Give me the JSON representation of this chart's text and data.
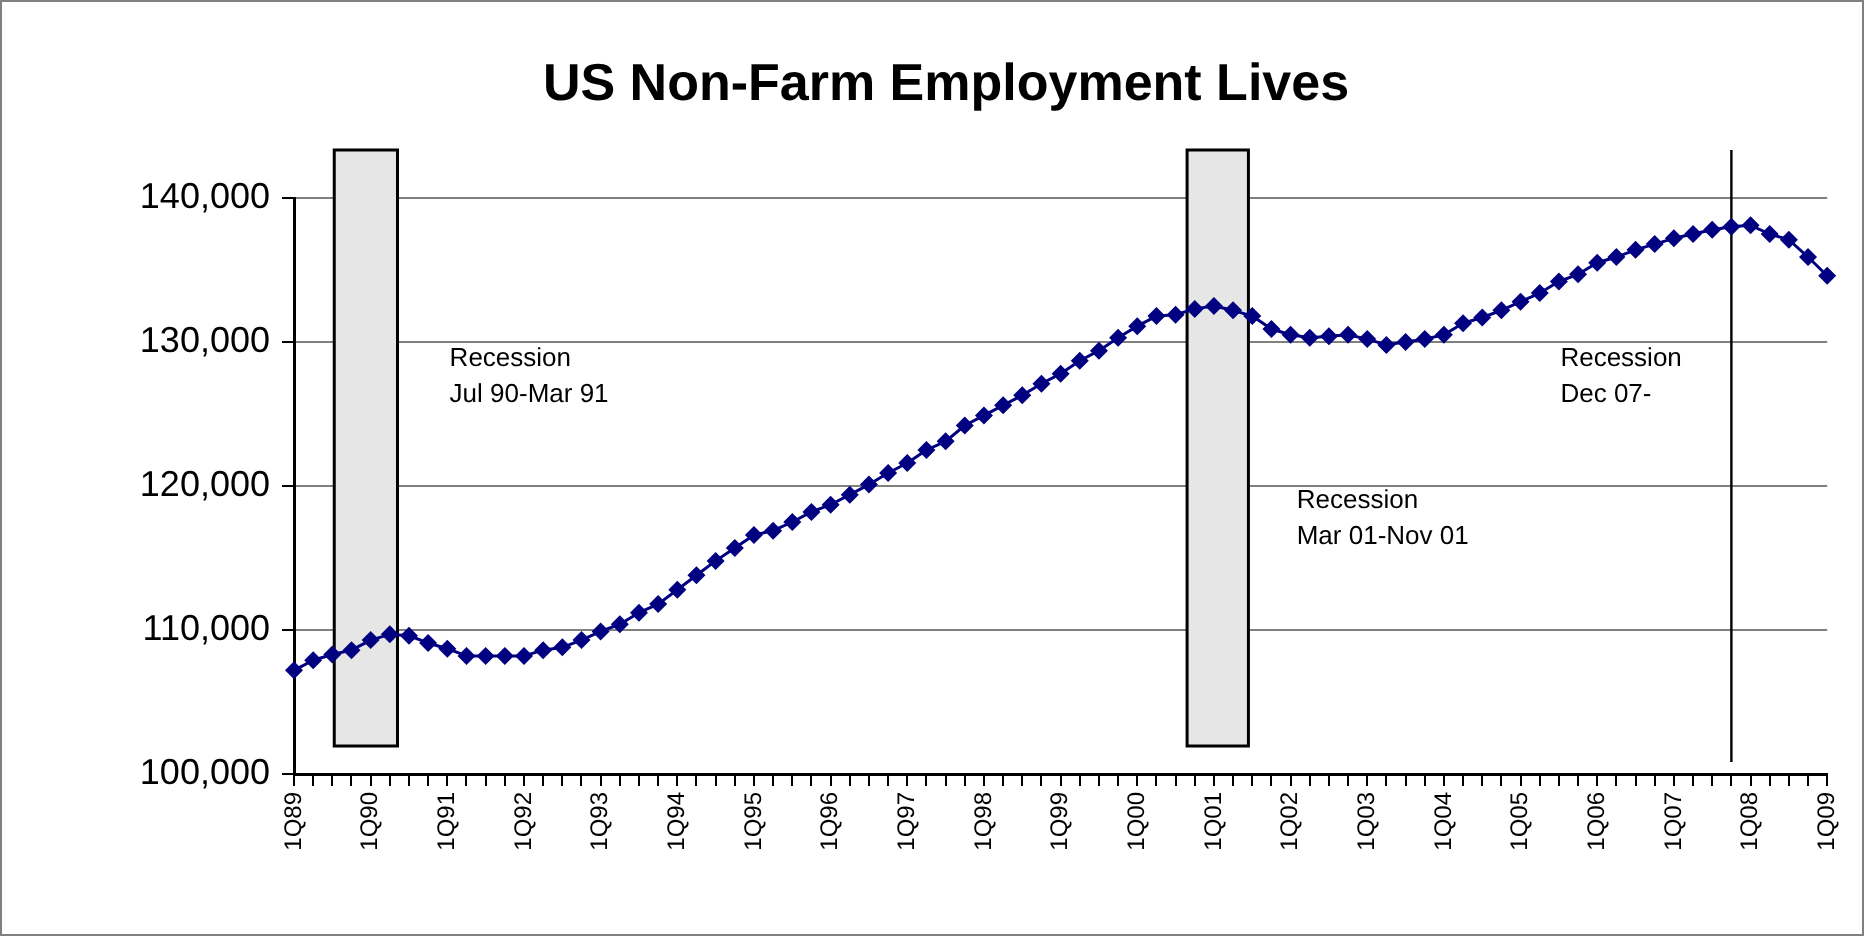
{
  "chart_data": {
    "type": "line",
    "title": "US Non-Farm Employment Lives",
    "categories": [
      "1Q89",
      null,
      null,
      null,
      "1Q90",
      null,
      null,
      null,
      "1Q91",
      null,
      null,
      null,
      "1Q92",
      null,
      null,
      null,
      "1Q93",
      null,
      null,
      null,
      "1Q94",
      null,
      null,
      null,
      "1Q95",
      null,
      null,
      null,
      "1Q96",
      null,
      null,
      null,
      "1Q97",
      null,
      null,
      null,
      "1Q98",
      null,
      null,
      null,
      "1Q99",
      null,
      null,
      null,
      "1Q00",
      null,
      null,
      null,
      "1Q01",
      null,
      null,
      null,
      "1Q02",
      null,
      null,
      null,
      "1Q03",
      null,
      null,
      null,
      "1Q04",
      null,
      null,
      null,
      "1Q05",
      null,
      null,
      null,
      "1Q06",
      null,
      null,
      null,
      "1Q07",
      null,
      null,
      null,
      "1Q08",
      null,
      null,
      null,
      "1Q09"
    ],
    "series": [
      {
        "color": "#000080",
        "values": [
          107200,
          107900,
          108300,
          108600,
          109300,
          109700,
          109600,
          109100,
          108700,
          108200,
          108200,
          108200,
          108200,
          108600,
          108800,
          109300,
          109900,
          110400,
          111200,
          111800,
          112800,
          113800,
          114800,
          115700,
          116600,
          116900,
          117500,
          118200,
          118700,
          119400,
          120100,
          120900,
          121600,
          122500,
          123100,
          124200,
          124900,
          125600,
          126300,
          127100,
          127800,
          128700,
          129400,
          130300,
          131100,
          131800,
          131900,
          132300,
          132500,
          132200,
          131800,
          130900,
          130500,
          130300,
          130400,
          130500,
          130200,
          129800,
          130000,
          130200,
          130500,
          131300,
          131700,
          132200,
          132800,
          133400,
          134200,
          134700,
          135500,
          135900,
          136400,
          136800,
          137200,
          137500,
          137800,
          138000,
          138100,
          137500,
          137100,
          135900,
          134600
        ]
      }
    ],
    "ylim": [
      100000,
      140000
    ],
    "yticks": [
      {
        "value": 100000,
        "label": "100,000"
      },
      {
        "value": 110000,
        "label": "110,000"
      },
      {
        "value": 120000,
        "label": "120,000"
      },
      {
        "value": 130000,
        "label": "130,000"
      },
      {
        "value": 140000,
        "label": "140,000"
      }
    ],
    "grid": "y",
    "legend": false,
    "marker": "diamond",
    "line_style": "solid",
    "annotations": [
      "Recession\nJul 90-Mar 91",
      "Recession\nMar 01-Nov 01",
      "Recession\nDec 07-"
    ]
  }
}
